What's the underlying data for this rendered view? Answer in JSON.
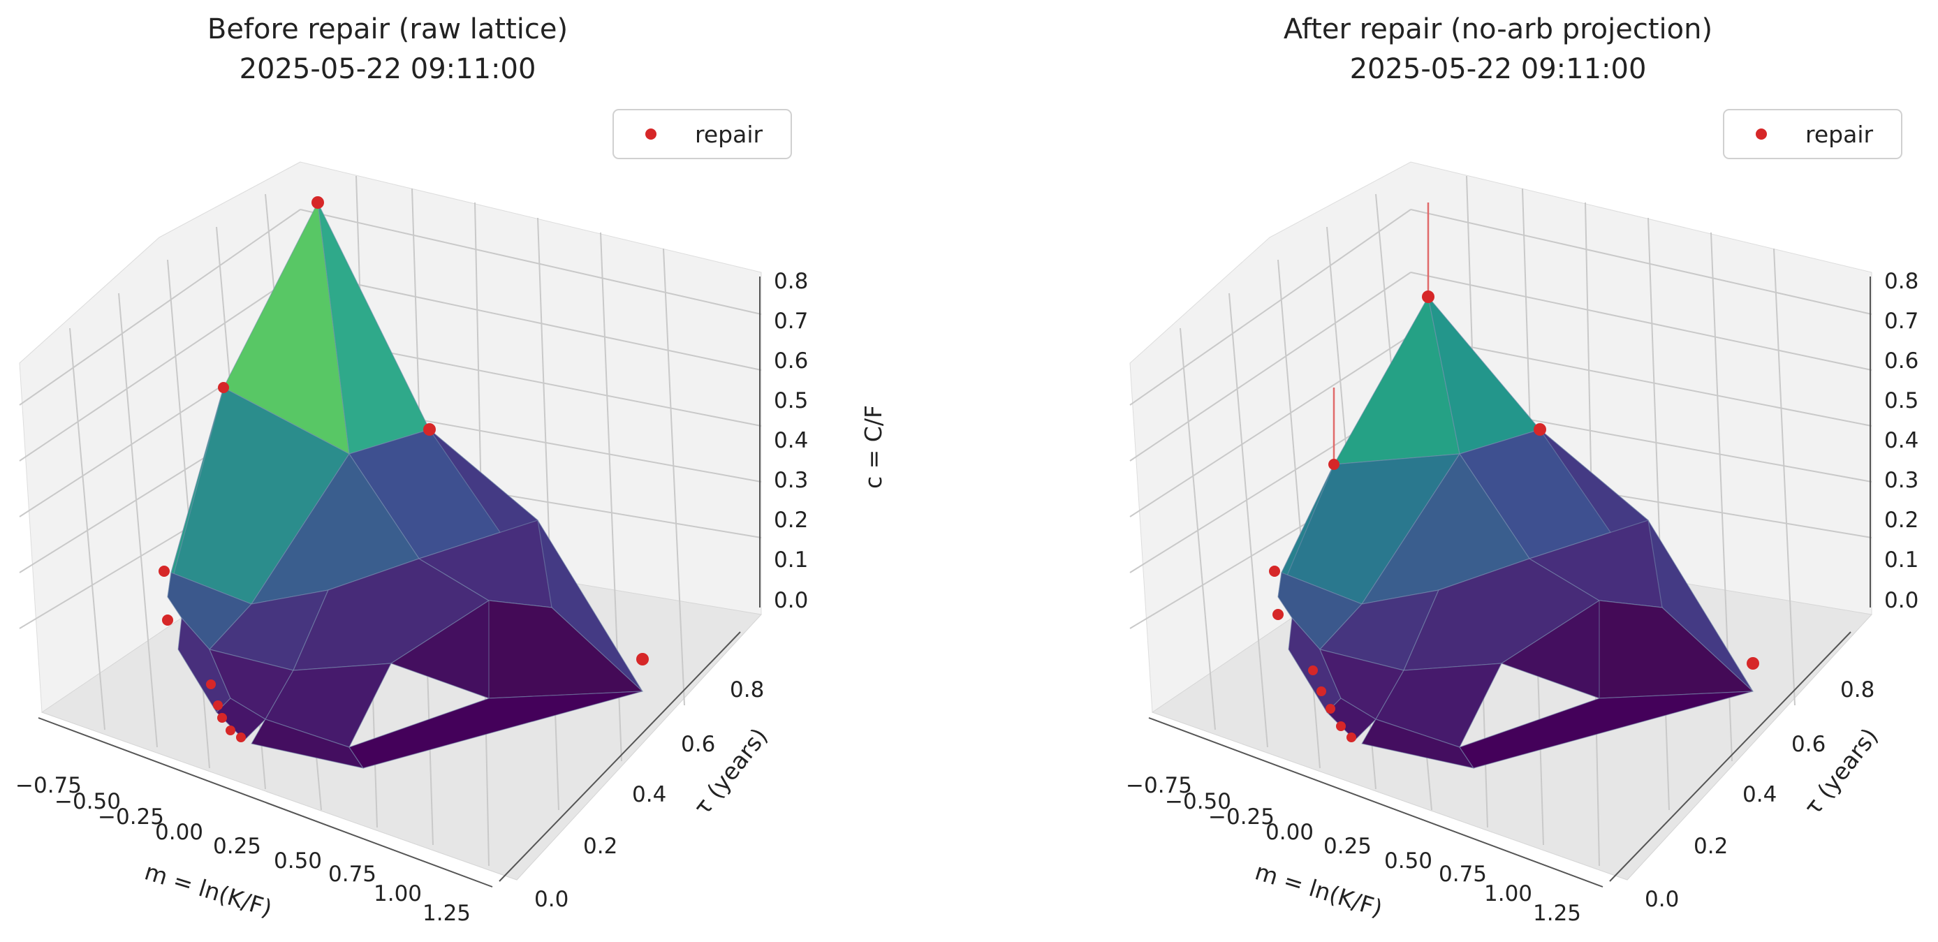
{
  "figure": {
    "panels": [
      {
        "title_line1": "Before repair (raw lattice)",
        "title_line2": "2025-05-22 09:11:00",
        "legend": {
          "label": "repair",
          "marker_color": "#d62728"
        },
        "axes": {
          "x_label": "m = ln(K/F)",
          "y_label": "τ (years)",
          "z_label": "c = C/F",
          "x_ticks": [
            "−0.75",
            "−0.50",
            "−0.25",
            "0.00",
            "0.25",
            "0.50",
            "0.75",
            "1.00",
            "1.25"
          ],
          "y_ticks": [
            "0.0",
            "0.2",
            "0.4",
            "0.6",
            "0.8"
          ],
          "z_ticks": [
            "0.0",
            "0.1",
            "0.2",
            "0.3",
            "0.4",
            "0.5",
            "0.6",
            "0.7",
            "0.8"
          ]
        }
      },
      {
        "title_line1": "After repair (no-arb projection)",
        "title_line2": "2025-05-22 09:11:00",
        "legend": {
          "label": "repair",
          "marker_color": "#d62728"
        },
        "axes": {
          "x_label": "m = ln(K/F)",
          "y_label": "τ (years)",
          "z_label": "",
          "x_ticks": [
            "−0.75",
            "−0.50",
            "−0.25",
            "0.00",
            "0.25",
            "0.50",
            "0.75",
            "1.00",
            "1.25"
          ],
          "y_ticks": [
            "0.0",
            "0.2",
            "0.4",
            "0.6",
            "0.8"
          ],
          "z_ticks": [
            "0.0",
            "0.1",
            "0.2",
            "0.3",
            "0.4",
            "0.5",
            "0.6",
            "0.7",
            "0.8"
          ]
        }
      }
    ]
  },
  "chart_data": [
    {
      "type": "surface3d",
      "title": "Before repair (raw lattice)\n2025-05-22 09:11:00",
      "xlabel": "m = ln(K/F)",
      "ylabel": "τ (years)",
      "zlabel": "c = C/F",
      "xlim": [
        -0.75,
        1.25
      ],
      "ylim": [
        0.0,
        0.8
      ],
      "zlim": [
        0.0,
        0.8
      ],
      "colormap": "viridis",
      "legend": {
        "entries": [
          "repair"
        ],
        "placement": "top-right"
      },
      "surface_vertices": [
        {
          "m": -0.75,
          "tau": 0.8,
          "c": 0.84
        },
        {
          "m": -0.75,
          "tau": 0.4,
          "c": 0.55
        },
        {
          "m": 0.0,
          "tau": 0.8,
          "c": 0.47
        },
        {
          "m": -0.75,
          "tau": 0.1,
          "c": 0.32
        },
        {
          "m": -0.6,
          "tau": 0.05,
          "c": 0.23
        },
        {
          "m": -0.2,
          "tau": 0.4,
          "c": 0.38
        },
        {
          "m": 0.4,
          "tau": 0.8,
          "c": 0.2
        },
        {
          "m": 0.5,
          "tau": 0.4,
          "c": 0.1
        },
        {
          "m": 0.3,
          "tau": 0.1,
          "c": 0.05
        },
        {
          "m": 1.25,
          "tau": 0.8,
          "c": 0.0
        },
        {
          "m": 1.0,
          "tau": 0.1,
          "c": 0.0
        },
        {
          "m": 0.0,
          "tau": 0.0,
          "c": 0.05
        }
      ],
      "repair_points": [
        {
          "m": -0.75,
          "tau": 0.8,
          "c": 0.84
        },
        {
          "m": -0.75,
          "tau": 0.4,
          "c": 0.55
        },
        {
          "m": 0.0,
          "tau": 0.8,
          "c": 0.47
        },
        {
          "m": -0.75,
          "tau": 0.1,
          "c": 0.32
        },
        {
          "m": -0.6,
          "tau": 0.05,
          "c": 0.23
        },
        {
          "m": -0.4,
          "tau": 0.0,
          "c": 0.15
        },
        {
          "m": -0.3,
          "tau": 0.0,
          "c": 0.11
        },
        {
          "m": -0.25,
          "tau": 0.0,
          "c": 0.09
        },
        {
          "m": -0.2,
          "tau": 0.0,
          "c": 0.07
        },
        {
          "m": -0.15,
          "tau": 0.0,
          "c": 0.06
        },
        {
          "m": 1.25,
          "tau": 0.8,
          "c": 0.0
        }
      ]
    },
    {
      "type": "surface3d",
      "title": "After repair (no-arb projection)\n2025-05-22 09:11:00",
      "xlabel": "m = ln(K/F)",
      "ylabel": "τ (years)",
      "zlabel": "",
      "xlim": [
        -0.75,
        1.25
      ],
      "ylim": [
        0.0,
        0.8
      ],
      "zlim": [
        0.0,
        0.8
      ],
      "colormap": "viridis",
      "legend": {
        "entries": [
          "repair"
        ],
        "placement": "top-right"
      },
      "surface_vertices": [
        {
          "m": -0.75,
          "tau": 0.8,
          "c": 0.55
        },
        {
          "m": -0.75,
          "tau": 0.4,
          "c": 0.4
        },
        {
          "m": 0.0,
          "tau": 0.8,
          "c": 0.38
        },
        {
          "m": -0.75,
          "tau": 0.1,
          "c": 0.32
        },
        {
          "m": -0.6,
          "tau": 0.05,
          "c": 0.23
        },
        {
          "m": -0.2,
          "tau": 0.4,
          "c": 0.3
        },
        {
          "m": 0.4,
          "tau": 0.8,
          "c": 0.2
        },
        {
          "m": 0.5,
          "tau": 0.4,
          "c": 0.1
        },
        {
          "m": 0.3,
          "tau": 0.1,
          "c": 0.05
        },
        {
          "m": 1.25,
          "tau": 0.8,
          "c": 0.0
        },
        {
          "m": 1.0,
          "tau": 0.1,
          "c": 0.0
        },
        {
          "m": 0.0,
          "tau": 0.0,
          "c": 0.05
        }
      ],
      "repair_points": [
        {
          "m": -0.75,
          "tau": 0.8,
          "c": 0.55,
          "original_c": 0.84
        },
        {
          "m": -0.75,
          "tau": 0.4,
          "c": 0.4,
          "original_c": 0.55
        },
        {
          "m": 0.0,
          "tau": 0.8,
          "c": 0.38
        },
        {
          "m": -0.75,
          "tau": 0.1,
          "c": 0.32
        },
        {
          "m": -0.6,
          "tau": 0.05,
          "c": 0.23
        },
        {
          "m": -0.4,
          "tau": 0.0,
          "c": 0.15
        },
        {
          "m": -0.3,
          "tau": 0.0,
          "c": 0.11
        },
        {
          "m": -0.25,
          "tau": 0.0,
          "c": 0.09
        },
        {
          "m": -0.2,
          "tau": 0.0,
          "c": 0.07
        },
        {
          "m": -0.15,
          "tau": 0.0,
          "c": 0.06
        },
        {
          "m": 1.25,
          "tau": 0.8,
          "c": 0.0
        }
      ]
    }
  ]
}
